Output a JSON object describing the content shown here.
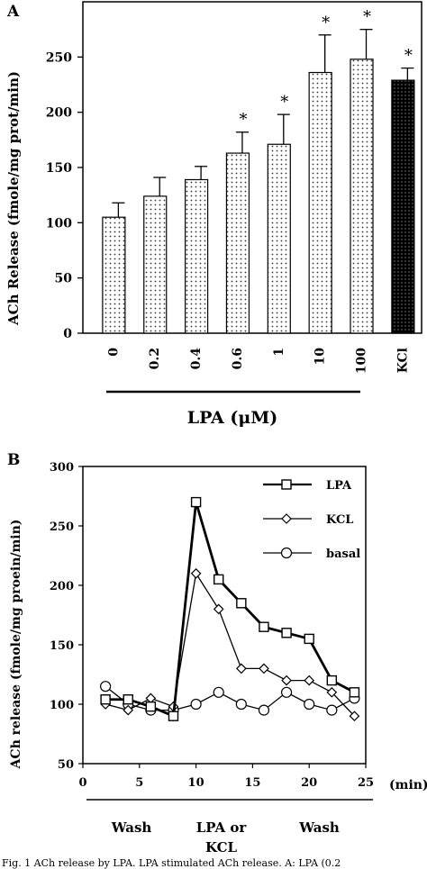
{
  "chart_data": [
    {
      "type": "bar",
      "panel_label": "A",
      "ylabel": "ACh Release (fmole/mg prot/min)",
      "xlabel": "LPA (μM)",
      "ylim": [
        0,
        300
      ],
      "yticks": [
        0,
        50,
        100,
        150,
        200,
        250
      ],
      "categories": [
        "0",
        "0.2",
        "0.4",
        "0.6",
        "1",
        "10",
        "100",
        "KCl"
      ],
      "values": [
        105,
        124,
        139,
        163,
        171,
        236,
        248,
        229
      ],
      "errors": [
        13,
        17,
        12,
        19,
        27,
        34,
        27,
        11
      ],
      "significance": [
        "",
        "",
        "",
        "*",
        "*",
        "*",
        "*",
        "*"
      ],
      "colors": {
        "lpa_bars": "#dddddd",
        "kcl_bar": "#111111"
      }
    },
    {
      "type": "line",
      "panel_label": "B",
      "ylabel": "ACh release (fmole/mg proein/min)",
      "xlabel": "(min)",
      "xlim": [
        0,
        25
      ],
      "ylim": [
        50,
        300
      ],
      "xticks": [
        0,
        5,
        10,
        15,
        20,
        25
      ],
      "yticks": [
        50,
        100,
        150,
        200,
        250,
        300
      ],
      "series": [
        {
          "name": "LPA",
          "marker": "square",
          "bold": true,
          "x": [
            2,
            4,
            6,
            8,
            10,
            12,
            14,
            16,
            18,
            20,
            22,
            24
          ],
          "y": [
            104,
            104,
            98,
            90,
            270,
            205,
            185,
            165,
            160,
            155,
            120,
            110
          ]
        },
        {
          "name": "KCL",
          "marker": "diamond",
          "bold": false,
          "x": [
            2,
            4,
            6,
            8,
            10,
            12,
            14,
            16,
            18,
            20,
            22,
            24
          ],
          "y": [
            100,
            95,
            105,
            98,
            210,
            180,
            130,
            130,
            120,
            120,
            110,
            90
          ]
        },
        {
          "name": "basal",
          "marker": "circle",
          "bold": false,
          "x": [
            2,
            4,
            6,
            8,
            10,
            12,
            14,
            16,
            18,
            20,
            22,
            24
          ],
          "y": [
            115,
            100,
            95,
            95,
            100,
            110,
            100,
            95,
            110,
            100,
            95,
            105
          ]
        }
      ],
      "phases": [
        {
          "label": "Wash"
        },
        {
          "label": "LPA or KCL"
        },
        {
          "label": "Wash"
        }
      ]
    }
  ],
  "caption_fragment": "Fig. 1 ACh release by LPA. LPA stimulated ACh release. A: LPA (0.2"
}
